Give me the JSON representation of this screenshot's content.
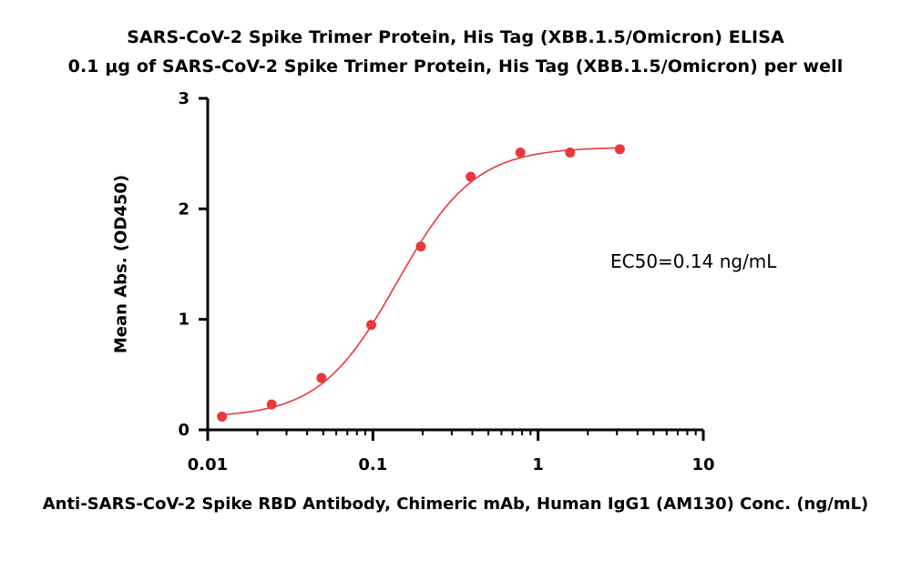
{
  "chart_data": {
    "type": "scatter",
    "title": "SARS-CoV-2 Spike Trimer Protein, His Tag (XBB.1.5/Omicron) ELISA",
    "subtitle": "0.1 μg of SARS-CoV-2 Spike Trimer Protein, His Tag (XBB.1.5/Omicron) per well",
    "xlabel": "Anti-SARS-CoV-2 Spike RBD Antibody, Chimeric mAb, Human IgG1 (AM130) Conc. (ng/mL)",
    "ylabel": "Mean Abs. (OD450)",
    "xscale": "log",
    "xlim": [
      0.01,
      10
    ],
    "ylim": [
      0,
      3
    ],
    "xticks": [
      0.01,
      0.1,
      1,
      10
    ],
    "xtick_labels": [
      "0.01",
      "0.1",
      "1",
      "10"
    ],
    "yticks": [
      0,
      1,
      2,
      3
    ],
    "ytick_labels": [
      "0",
      "1",
      "2",
      "3"
    ],
    "series": [
      {
        "name": "data",
        "color": "#e8383d",
        "x": [
          0.0122,
          0.0244,
          0.0488,
          0.0977,
          0.195,
          0.391,
          0.781,
          1.563,
          3.125
        ],
        "y": [
          0.12,
          0.23,
          0.47,
          0.95,
          1.66,
          2.29,
          2.51,
          2.51,
          2.54
        ]
      }
    ],
    "fit": {
      "model": "4PL",
      "bottom": 0.11,
      "top": 2.56,
      "ec50": 0.14,
      "hill": 1.85,
      "color": "#e8383d"
    },
    "annotation": "EC50=0.14 ng/mL",
    "grid": false
  }
}
